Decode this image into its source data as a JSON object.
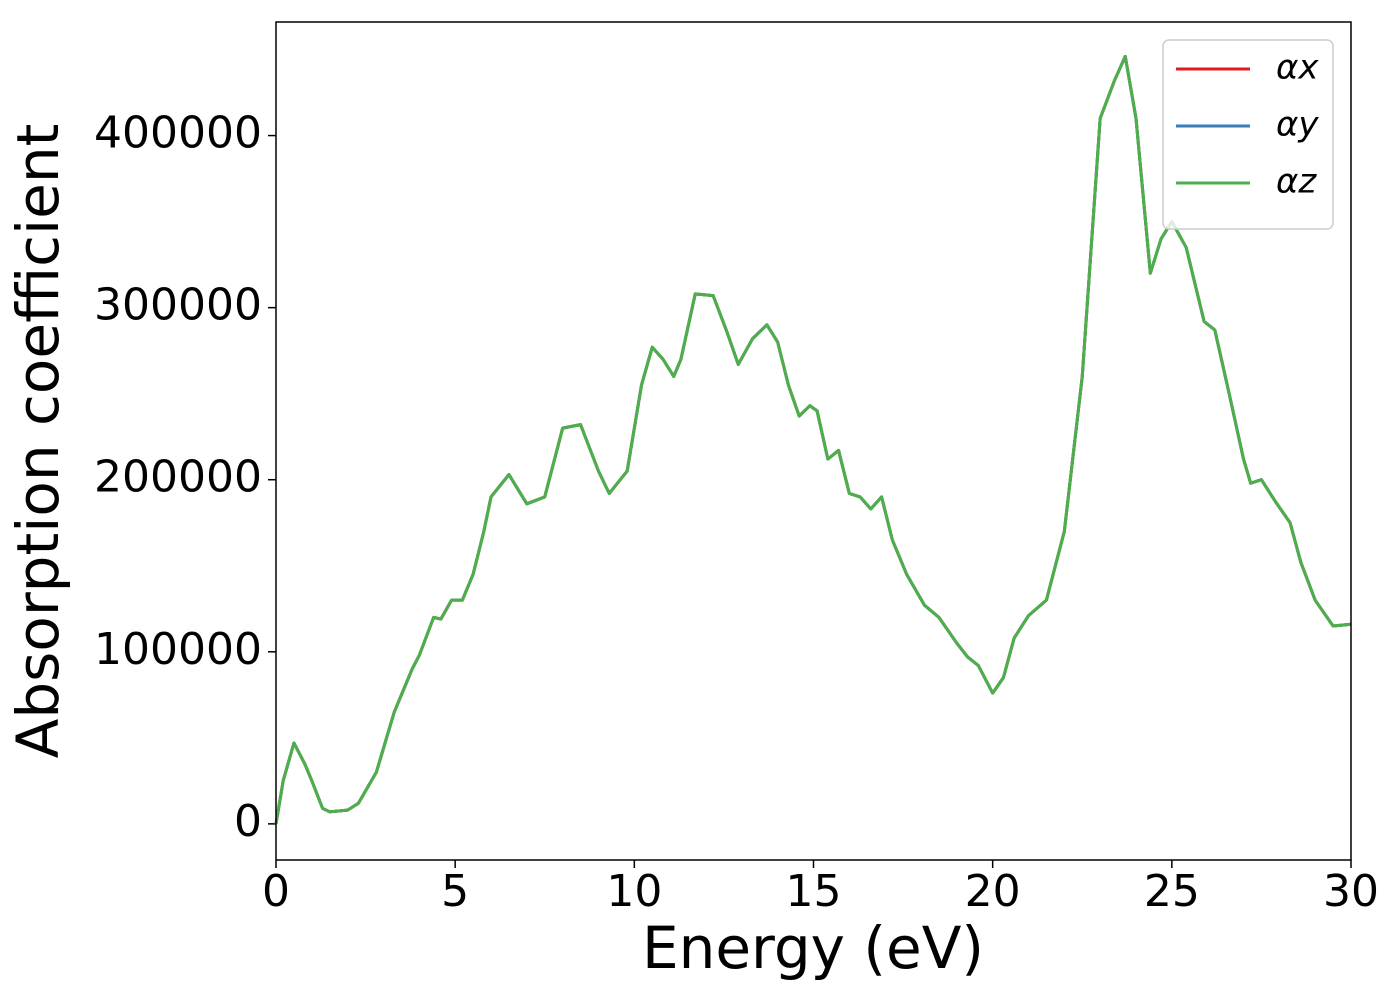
{
  "chart_data": {
    "type": "line",
    "xlabel": "Energy (eV)",
    "ylabel": "Absorption coefficient",
    "x": [
      0,
      0.2,
      0.5,
      0.8,
      1.0,
      1.3,
      1.5,
      2.0,
      2.3,
      2.8,
      3.3,
      3.8,
      4.0,
      4.4,
      4.6,
      4.9,
      5.2,
      5.5,
      5.8,
      6.0,
      6.5,
      7.0,
      7.5,
      8.0,
      8.5,
      9.0,
      9.3,
      9.8,
      10.2,
      10.5,
      10.8,
      11.1,
      11.3,
      11.7,
      12.2,
      12.6,
      12.9,
      13.3,
      13.7,
      14.0,
      14.3,
      14.6,
      14.9,
      15.1,
      15.4,
      15.7,
      16.0,
      16.3,
      16.6,
      16.9,
      17.2,
      17.6,
      18.1,
      18.5,
      19.0,
      19.3,
      19.6,
      20.0,
      20.3,
      20.6,
      21.0,
      21.5,
      22.0,
      22.5,
      23.0,
      23.4,
      23.7,
      24.0,
      24.4,
      24.7,
      25.0,
      25.4,
      25.9,
      26.2,
      26.6,
      27.0,
      27.2,
      27.5,
      27.9,
      28.3,
      28.6,
      29.0,
      29.5,
      30.0
    ],
    "series": [
      {
        "name": "αx",
        "color": "#e41a1c",
        "values": [
          0,
          25000,
          47000,
          35000,
          25000,
          9000,
          7000,
          8000,
          12000,
          30000,
          65000,
          90000,
          98000,
          120000,
          119000,
          130000,
          130000,
          145000,
          170000,
          190000,
          203000,
          186000,
          190000,
          230000,
          232000,
          205000,
          192000,
          205000,
          255000,
          277000,
          270000,
          260000,
          270000,
          308000,
          307000,
          285000,
          267000,
          282000,
          290000,
          280000,
          255000,
          237000,
          243000,
          240000,
          212000,
          217000,
          192000,
          190000,
          183000,
          190000,
          165000,
          145000,
          127000,
          120000,
          105000,
          97000,
          92000,
          76000,
          85000,
          108000,
          121000,
          130000,
          170000,
          260000,
          410000,
          432000,
          446000,
          410000,
          320000,
          340000,
          350000,
          335000,
          292000,
          287000,
          250000,
          212000,
          198000,
          200000,
          187000,
          175000,
          152000,
          130000,
          115000,
          116000
        ]
      },
      {
        "name": "αy",
        "color": "#377eb8",
        "values": [
          0,
          25000,
          47000,
          35000,
          25000,
          9000,
          7000,
          8000,
          12000,
          30000,
          65000,
          90000,
          98000,
          120000,
          119000,
          130000,
          130000,
          145000,
          170000,
          190000,
          203000,
          186000,
          190000,
          230000,
          232000,
          205000,
          192000,
          205000,
          255000,
          277000,
          270000,
          260000,
          270000,
          308000,
          307000,
          285000,
          267000,
          282000,
          290000,
          280000,
          255000,
          237000,
          243000,
          240000,
          212000,
          217000,
          192000,
          190000,
          183000,
          190000,
          165000,
          145000,
          127000,
          120000,
          105000,
          97000,
          92000,
          76000,
          85000,
          108000,
          121000,
          130000,
          170000,
          260000,
          410000,
          432000,
          446000,
          410000,
          320000,
          340000,
          350000,
          335000,
          292000,
          287000,
          250000,
          212000,
          198000,
          200000,
          187000,
          175000,
          152000,
          130000,
          115000,
          116000
        ]
      },
      {
        "name": "αz",
        "color": "#4daf4a",
        "values": [
          0,
          25000,
          47000,
          35000,
          25000,
          9000,
          7000,
          8000,
          12000,
          30000,
          65000,
          90000,
          98000,
          120000,
          119000,
          130000,
          130000,
          145000,
          170000,
          190000,
          203000,
          186000,
          190000,
          230000,
          232000,
          205000,
          192000,
          205000,
          255000,
          277000,
          270000,
          260000,
          270000,
          308000,
          307000,
          285000,
          267000,
          282000,
          290000,
          280000,
          255000,
          237000,
          243000,
          240000,
          212000,
          217000,
          192000,
          190000,
          183000,
          190000,
          165000,
          145000,
          127000,
          120000,
          105000,
          97000,
          92000,
          76000,
          85000,
          108000,
          121000,
          130000,
          170000,
          260000,
          410000,
          432000,
          446000,
          410000,
          320000,
          340000,
          350000,
          335000,
          292000,
          287000,
          250000,
          212000,
          198000,
          200000,
          187000,
          175000,
          152000,
          130000,
          115000,
          116000
        ]
      }
    ],
    "xlim": [
      0,
      30
    ],
    "xticks": [
      0,
      5,
      10,
      15,
      20,
      25,
      30
    ],
    "ylim": [
      -21000,
      466000
    ],
    "yticks": [
      0,
      100000,
      200000,
      300000,
      400000
    ],
    "grid": false,
    "legend": "upper right"
  }
}
